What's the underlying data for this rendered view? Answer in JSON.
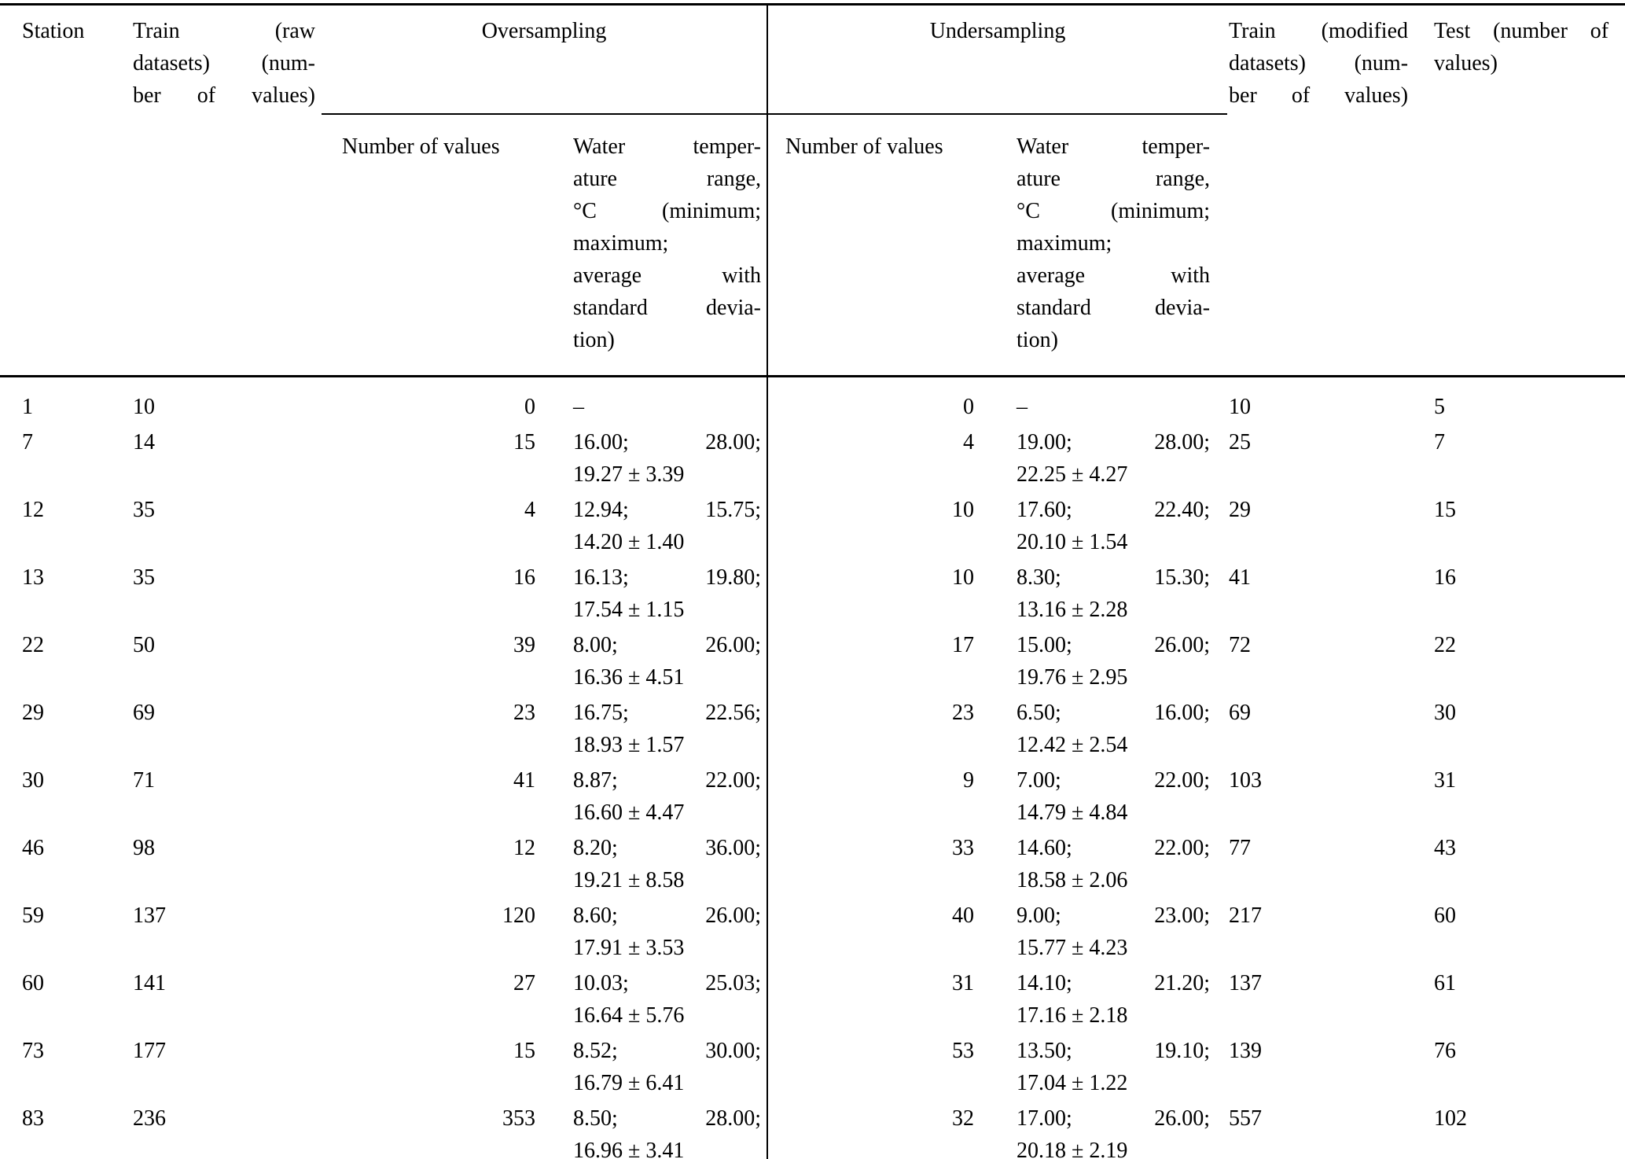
{
  "table": {
    "header": {
      "station": "Station",
      "train_raw_lines": [
        "Train (raw",
        "datasets) (num-",
        "ber of values)"
      ],
      "oversampling": "Oversampling",
      "undersampling": "Undersampling",
      "number_of_values": "Number of values",
      "water_temp_lines": [
        "Water temper-",
        "ature range,",
        "°C (minimum;",
        "maximum;",
        "average with",
        "standard devia-",
        "tion)"
      ],
      "train_mod_lines": [
        "Train (modified",
        "datasets) (num-",
        "ber of values)"
      ],
      "test_lines": [
        "Test (number of",
        "values)"
      ]
    },
    "dash": "–",
    "rows": [
      {
        "station": "1",
        "train_raw": "10",
        "over_n": "0",
        "over_range": null,
        "under_n": "0",
        "under_range": null,
        "train_mod": "10",
        "test": "5"
      },
      {
        "station": "7",
        "train_raw": "14",
        "over_n": "15",
        "over_range": {
          "min": "16.00;",
          "max": "28.00;",
          "avg": "19.27 ± 3.39"
        },
        "under_n": "4",
        "under_range": {
          "min": "19.00;",
          "max": "28.00;",
          "avg": "22.25 ± 4.27"
        },
        "train_mod": "25",
        "test": "7"
      },
      {
        "station": "12",
        "train_raw": "35",
        "over_n": "4",
        "over_range": {
          "min": "12.94;",
          "max": "15.75;",
          "avg": "14.20 ± 1.40"
        },
        "under_n": "10",
        "under_range": {
          "min": "17.60;",
          "max": "22.40;",
          "avg": "20.10 ± 1.54"
        },
        "train_mod": "29",
        "test": "15"
      },
      {
        "station": "13",
        "train_raw": "35",
        "over_n": "16",
        "over_range": {
          "min": "16.13;",
          "max": "19.80;",
          "avg": "17.54 ± 1.15"
        },
        "under_n": "10",
        "under_range": {
          "min": "8.30;",
          "max": "15.30;",
          "avg": "13.16 ± 2.28"
        },
        "train_mod": "41",
        "test": "16"
      },
      {
        "station": "22",
        "train_raw": "50",
        "over_n": "39",
        "over_range": {
          "min": "8.00;",
          "max": "26.00;",
          "avg": "16.36 ± 4.51"
        },
        "under_n": "17",
        "under_range": {
          "min": "15.00;",
          "max": "26.00;",
          "avg": "19.76 ± 2.95"
        },
        "train_mod": "72",
        "test": "22"
      },
      {
        "station": "29",
        "train_raw": "69",
        "over_n": "23",
        "over_range": {
          "min": "16.75;",
          "max": "22.56;",
          "avg": "18.93 ± 1.57"
        },
        "under_n": "23",
        "under_range": {
          "min": "6.50;",
          "max": "16.00;",
          "avg": "12.42 ± 2.54"
        },
        "train_mod": "69",
        "test": "30"
      },
      {
        "station": "30",
        "train_raw": "71",
        "over_n": "41",
        "over_range": {
          "min": "8.87;",
          "max": "22.00;",
          "avg": "16.60 ± 4.47"
        },
        "under_n": "9",
        "under_range": {
          "min": "7.00;",
          "max": "22.00;",
          "avg": "14.79 ± 4.84"
        },
        "train_mod": "103",
        "test": "31"
      },
      {
        "station": "46",
        "train_raw": "98",
        "over_n": "12",
        "over_range": {
          "min": "8.20;",
          "max": "36.00;",
          "avg": "19.21 ± 8.58"
        },
        "under_n": "33",
        "under_range": {
          "min": "14.60;",
          "max": "22.00;",
          "avg": "18.58 ± 2.06"
        },
        "train_mod": "77",
        "test": "43"
      },
      {
        "station": "59",
        "train_raw": "137",
        "over_n": "120",
        "over_range": {
          "min": "8.60;",
          "max": "26.00;",
          "avg": "17.91 ± 3.53"
        },
        "under_n": "40",
        "under_range": {
          "min": "9.00;",
          "max": "23.00;",
          "avg": "15.77 ± 4.23"
        },
        "train_mod": "217",
        "test": "60"
      },
      {
        "station": "60",
        "train_raw": "141",
        "over_n": "27",
        "over_range": {
          "min": "10.03;",
          "max": "25.03;",
          "avg": "16.64 ± 5.76"
        },
        "under_n": "31",
        "under_range": {
          "min": "14.10;",
          "max": "21.20;",
          "avg": "17.16 ± 2.18"
        },
        "train_mod": "137",
        "test": "61"
      },
      {
        "station": "73",
        "train_raw": "177",
        "over_n": "15",
        "over_range": {
          "min": "8.52;",
          "max": "30.00;",
          "avg": "16.79 ± 6.41"
        },
        "under_n": "53",
        "under_range": {
          "min": "13.50;",
          "max": "19.10;",
          "avg": "17.04 ± 1.22"
        },
        "train_mod": "139",
        "test": "76"
      },
      {
        "station": "83",
        "train_raw": "236",
        "over_n": "353",
        "over_range": {
          "min": "8.50;",
          "max": "28.00;",
          "avg": "16.96 ± 3.41"
        },
        "under_n": "32",
        "under_range": {
          "min": "17.00;",
          "max": "26.00;",
          "avg": "20.18 ± 2.19"
        },
        "train_mod": "557",
        "test": "102"
      }
    ]
  }
}
